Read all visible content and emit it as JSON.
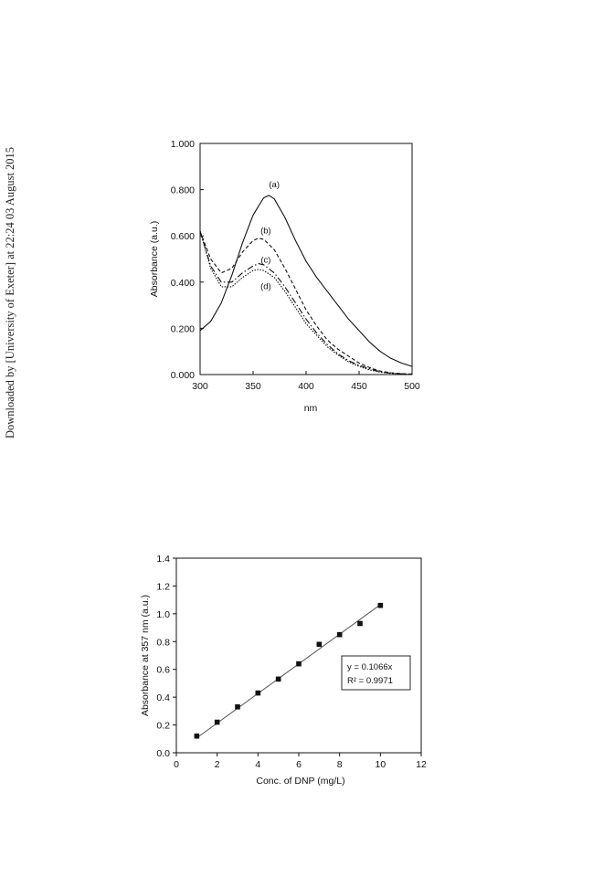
{
  "side_note": "Downloaded by [University of Exeter] at 22:24 03 August 2015",
  "chart_data": [
    {
      "type": "line",
      "xlabel": "nm",
      "ylabel": "Absorbance (a.u.)",
      "xlim": [
        300,
        500
      ],
      "ylim": [
        0.0,
        1.0
      ],
      "xticks": [
        300,
        350,
        400,
        450,
        500
      ],
      "xtick_labels": [
        "300",
        "350",
        "400",
        "450",
        "500"
      ],
      "yticks": [
        0.0,
        0.2,
        0.4,
        0.6,
        0.8,
        1.0
      ],
      "ytick_labels": [
        "0.000",
        "0.200",
        "0.400",
        "0.600",
        "0.800",
        "1.000"
      ],
      "grid": false,
      "series": [
        {
          "name": "(a)",
          "style": "solid",
          "x": [
            300,
            310,
            320,
            330,
            340,
            350,
            360,
            365,
            370,
            380,
            390,
            400,
            410,
            420,
            430,
            440,
            450,
            460,
            470,
            480,
            490,
            500
          ],
          "y": [
            0.19,
            0.23,
            0.31,
            0.43,
            0.57,
            0.69,
            0.765,
            0.775,
            0.76,
            0.68,
            0.58,
            0.49,
            0.42,
            0.36,
            0.3,
            0.24,
            0.19,
            0.14,
            0.1,
            0.07,
            0.05,
            0.035
          ]
        },
        {
          "name": "(b)",
          "style": "dash",
          "x": [
            300,
            310,
            320,
            330,
            340,
            350,
            355,
            360,
            370,
            380,
            390,
            400,
            410,
            420,
            430,
            440,
            450,
            460,
            470,
            480,
            490,
            500
          ],
          "y": [
            0.62,
            0.5,
            0.44,
            0.46,
            0.53,
            0.58,
            0.59,
            0.585,
            0.54,
            0.46,
            0.37,
            0.28,
            0.21,
            0.15,
            0.11,
            0.08,
            0.05,
            0.03,
            0.015,
            0.008,
            0.004,
            0.002
          ]
        },
        {
          "name": "(c)",
          "style": "dashdot",
          "x": [
            300,
            310,
            320,
            330,
            340,
            350,
            355,
            360,
            370,
            380,
            390,
            400,
            410,
            420,
            430,
            440,
            450,
            460,
            470,
            480,
            490,
            500
          ],
          "y": [
            0.62,
            0.47,
            0.4,
            0.4,
            0.44,
            0.47,
            0.48,
            0.475,
            0.44,
            0.38,
            0.31,
            0.24,
            0.18,
            0.13,
            0.09,
            0.06,
            0.04,
            0.025,
            0.012,
            0.006,
            0.003,
            0.001
          ]
        },
        {
          "name": "(d)",
          "style": "dot",
          "x": [
            300,
            310,
            320,
            330,
            340,
            350,
            355,
            360,
            370,
            380,
            390,
            400,
            410,
            420,
            430,
            440,
            450,
            460,
            470,
            480,
            490,
            500
          ],
          "y": [
            0.62,
            0.46,
            0.38,
            0.38,
            0.42,
            0.45,
            0.455,
            0.45,
            0.42,
            0.36,
            0.29,
            0.22,
            0.17,
            0.12,
            0.085,
            0.055,
            0.035,
            0.02,
            0.01,
            0.005,
            0.002,
            0.001
          ]
        }
      ],
      "label_points": [
        {
          "text": "(a)",
          "x": 370,
          "y": 0.81
        },
        {
          "text": "(b)",
          "x": 362,
          "y": 0.61
        },
        {
          "text": "(c)",
          "x": 362,
          "y": 0.485
        },
        {
          "text": "(d)",
          "x": 362,
          "y": 0.37
        }
      ]
    },
    {
      "type": "scatter",
      "xlabel": "Conc. of DNP (mg/L)",
      "ylabel": "Absorbance at 357 nm (a.u.)",
      "xlim": [
        0,
        12
      ],
      "ylim": [
        0.0,
        1.4
      ],
      "xticks": [
        0,
        2,
        4,
        6,
        8,
        10,
        12
      ],
      "xtick_labels": [
        "0",
        "2",
        "4",
        "6",
        "8",
        "10",
        "12"
      ],
      "yticks": [
        0.0,
        0.2,
        0.4,
        0.6,
        0.8,
        1.0,
        1.2,
        1.4
      ],
      "ytick_labels": [
        "0.0",
        "0.2",
        "0.4",
        "0.6",
        "0.8",
        "1.0",
        "1.2",
        "1.4"
      ],
      "grid": false,
      "series": [
        {
          "x": [
            1,
            2,
            3,
            4,
            5,
            6,
            7,
            8,
            9,
            10
          ],
          "y": [
            0.12,
            0.22,
            0.33,
            0.43,
            0.53,
            0.64,
            0.78,
            0.85,
            0.93,
            1.06
          ]
        }
      ],
      "trendline": {
        "x": [
          1,
          10
        ],
        "y": [
          0.1066,
          1.066
        ]
      },
      "annotation": {
        "line1": "y = 0.1066x",
        "line2": "R² = 0.9971"
      }
    }
  ]
}
